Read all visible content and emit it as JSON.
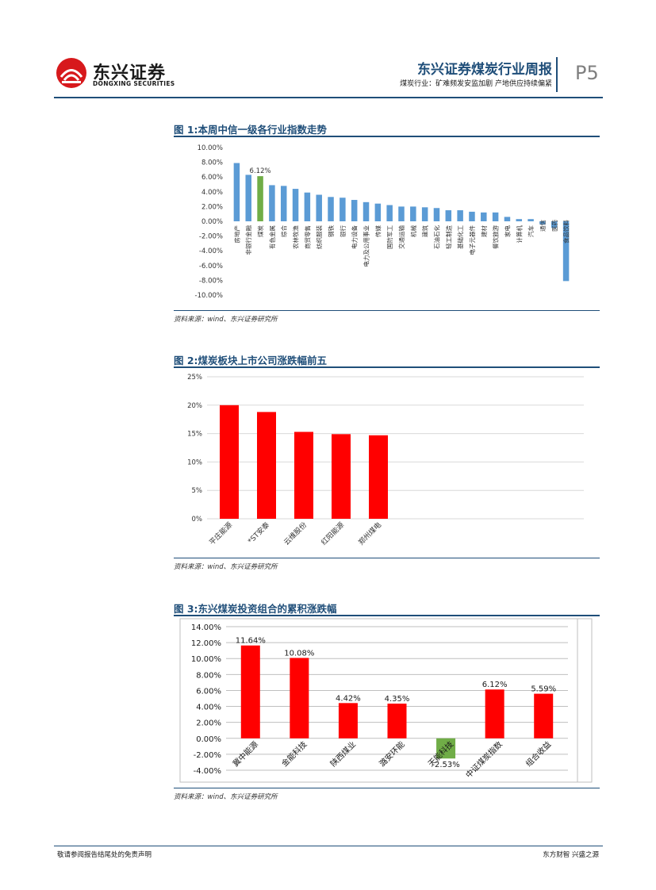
{
  "header": {
    "logo_cn": "东兴证券",
    "logo_en": "DONGXING SECURITIES",
    "report_title": "东兴证券煤炭行业周报",
    "report_subtitle": "煤炭行业：矿难频发安监加剧 产地供应持续偏紧",
    "page_number": "P5",
    "brand_color": "#1f4e79",
    "logo_color": "#d7191c"
  },
  "figures": [
    {
      "title": "图 1:本周中信一级各行业指数走势",
      "source": "资料来源：wind、东兴证券研究所"
    },
    {
      "title": "图 2:煤炭板块上市公司涨跌幅前五",
      "source": "资料来源：wind、东兴证券研究所"
    },
    {
      "title": "图 3:东兴煤炭投资组合的累积涨跌幅",
      "source": "资料来源：wind、东兴证券研究所"
    }
  ],
  "footer": {
    "left": "敬请参阅报告结尾处的免责声明",
    "right": "东方财智 兴盛之源"
  },
  "chart_data": [
    {
      "type": "bar",
      "categories": [
        "房地产",
        "非银行金融",
        "煤炭",
        "有色金属",
        "综合",
        "农林牧渔",
        "商贸零售",
        "纺织服装",
        "钢铁",
        "银行",
        "电力设备",
        "电力及公用事业",
        "传媒",
        "国防军工",
        "交通运输",
        "机械",
        "建筑",
        "石油石化",
        "轻工制造",
        "基础化工",
        "电子元器件",
        "建材",
        "餐饮旅游",
        "家电",
        "计算机",
        "汽车",
        "通信",
        "医药",
        "食品饮料"
      ],
      "tick_labels": [
        "房地产",
        "非银行金融",
        "煤炭",
        "有色金属",
        "综合",
        "农林牧渔",
        "商贸零售",
        "纺织服装",
        "钢铁",
        "银行",
        "电力设备",
        "电力及公用事业",
        "传媒",
        "国防军工",
        "交通运输",
        "机械",
        "建筑",
        "石油石化",
        "轻工制造",
        "基础化工",
        "电子元器件",
        "建材",
        "餐饮旅游",
        "家电",
        "计算机",
        "汽车",
        "通信",
        "医药",
        "食品饮料"
      ],
      "values": [
        7.9,
        6.3,
        6.12,
        4.9,
        4.8,
        4.4,
        3.9,
        3.6,
        3.3,
        3.2,
        2.9,
        2.6,
        2.4,
        2.2,
        2.0,
        2.0,
        1.9,
        1.8,
        1.5,
        1.5,
        1.3,
        1.2,
        1.2,
        0.6,
        0.3,
        0.3,
        -0.4,
        -0.9,
        -8.1
      ],
      "highlight": "煤炭",
      "data_labels": [
        {
          "category": "煤炭",
          "text": "6.12%"
        }
      ],
      "yticks": [
        "10.00%",
        "8.00%",
        "6.00%",
        "4.00%",
        "2.00%",
        "0.00%",
        "-2.00%",
        "-4.00%",
        "-6.00%",
        "-8.00%",
        "-10.00%"
      ],
      "ylim": [
        -10,
        10
      ],
      "colors": {
        "default": "#5b9bd5",
        "highlight": "#70ad47"
      },
      "grid": false,
      "title": "",
      "xlabel": "",
      "ylabel": ""
    },
    {
      "type": "bar",
      "categories": [
        "平庄能源",
        "*ST安泰",
        "云维股份",
        "红阳能源",
        "郑州煤电"
      ],
      "values": [
        20.0,
        18.8,
        15.3,
        14.9,
        14.7
      ],
      "yticks": [
        "25%",
        "20%",
        "15%",
        "10%",
        "5%",
        "0%"
      ],
      "ylim": [
        0,
        25
      ],
      "colors": {
        "default": "#ff0000"
      },
      "grid": true,
      "title": "",
      "xlabel": "",
      "ylabel": ""
    },
    {
      "type": "bar",
      "categories": [
        "冀中能源",
        "金能科技",
        "陕西煤业",
        "潞安环能",
        "天能科技",
        "中证煤炭指数",
        "组合收益"
      ],
      "values": [
        11.64,
        10.08,
        4.42,
        4.35,
        -2.53,
        6.12,
        5.59
      ],
      "data_labels": [
        "11.64%",
        "10.08%",
        "4.42%",
        "4.35%",
        "-2.53%",
        "6.12%",
        "5.59%"
      ],
      "yticks": [
        "14.00%",
        "12.00%",
        "10.00%",
        "8.00%",
        "6.00%",
        "4.00%",
        "2.00%",
        "0.00%",
        "-2.00%",
        "-4.00%"
      ],
      "ylim": [
        -4,
        14
      ],
      "colors": {
        "positive": "#ff0000",
        "negative": "#70ad47"
      },
      "grid": true,
      "title": "",
      "xlabel": "",
      "ylabel": ""
    }
  ]
}
